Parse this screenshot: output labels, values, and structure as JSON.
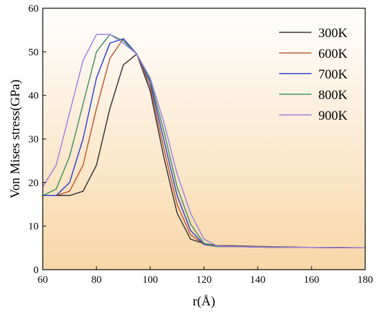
{
  "chart_data": {
    "type": "line",
    "title": "",
    "xlabel": "r(Å)",
    "ylabel": "Von Mises stress(GPa)",
    "xlim": [
      60,
      180
    ],
    "ylim": [
      0,
      60
    ],
    "xticks": [
      60,
      80,
      100,
      120,
      140,
      160,
      180
    ],
    "yticks": [
      0,
      10,
      20,
      30,
      40,
      50,
      60
    ],
    "grid": false,
    "legend_position": "top-right",
    "background": "gradient-white-to-peach",
    "series": [
      {
        "name": "300K",
        "color": "#333333",
        "x": [
          60,
          65,
          70,
          75,
          80,
          85,
          90,
          95,
          100,
          105,
          110,
          115,
          120,
          125,
          130,
          140,
          150,
          160,
          170,
          180
        ],
        "y": [
          17,
          17,
          17,
          18,
          24,
          37,
          47,
          49.5,
          41,
          26,
          13,
          7,
          6,
          5.5,
          5.5,
          5.3,
          5.2,
          5.1,
          5.1,
          5.0
        ]
      },
      {
        "name": "600K",
        "color": "#c0582d",
        "x": [
          60,
          65,
          70,
          75,
          80,
          85,
          90,
          95,
          100,
          105,
          110,
          115,
          120,
          125,
          130,
          140,
          150,
          160,
          170,
          180
        ],
        "y": [
          17,
          17,
          18,
          24,
          37,
          48.5,
          53,
          49.5,
          42,
          28,
          15,
          8,
          5.8,
          5.3,
          5.3,
          5.2,
          5.1,
          5.1,
          5.0,
          5.0
        ]
      },
      {
        "name": "700K",
        "color": "#2f3fcf",
        "x": [
          60,
          65,
          70,
          75,
          80,
          85,
          90,
          95,
          100,
          105,
          110,
          115,
          120,
          125,
          130,
          140,
          150,
          160,
          170,
          180
        ],
        "y": [
          17,
          17,
          20,
          30,
          44,
          52,
          53,
          49.5,
          43,
          30,
          17,
          9,
          5.8,
          5.3,
          5.3,
          5.2,
          5.1,
          5.1,
          5.0,
          5.0
        ]
      },
      {
        "name": "800K",
        "color": "#3f8f5f",
        "x": [
          60,
          65,
          70,
          75,
          80,
          85,
          90,
          95,
          100,
          105,
          110,
          115,
          120,
          125,
          130,
          140,
          150,
          160,
          170,
          180
        ],
        "y": [
          17,
          18.5,
          26,
          38,
          50,
          54,
          52.5,
          49.5,
          43.5,
          32,
          19,
          10.5,
          6,
          5.3,
          5.3,
          5.2,
          5.1,
          5.1,
          5.0,
          5.0
        ]
      },
      {
        "name": "900K",
        "color": "#9b7fe0",
        "x": [
          60,
          65,
          70,
          75,
          80,
          85,
          90,
          95,
          100,
          105,
          110,
          115,
          120,
          125,
          130,
          140,
          150,
          160,
          170,
          180
        ],
        "y": [
          19,
          24,
          36,
          48,
          54,
          54,
          52,
          49.5,
          44,
          34,
          22,
          13,
          7,
          5.4,
          5.3,
          5.2,
          5.1,
          5.1,
          5.0,
          5.0
        ]
      }
    ]
  }
}
